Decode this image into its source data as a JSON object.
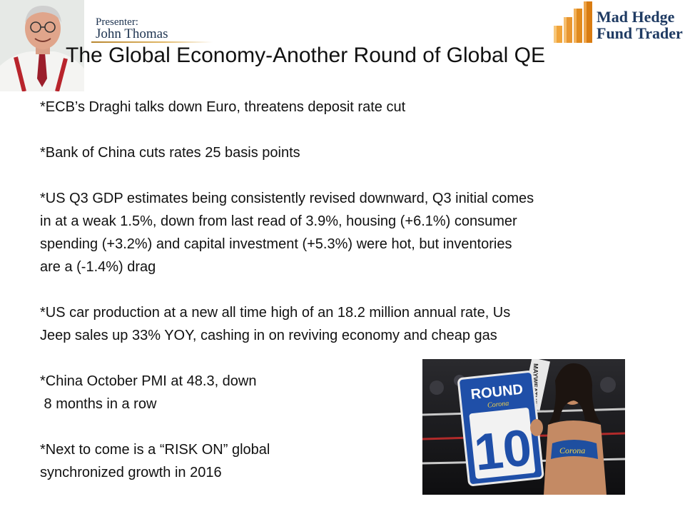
{
  "header": {
    "presenter_label": "Presenter:",
    "presenter_name": "John Thomas",
    "logo_line1": "Mad Hedge",
    "logo_line2": "Fund Trader"
  },
  "title": "The Global Economy-Another Round of Global QE",
  "bullets": [
    [
      "*ECB’s Draghi talks down Euro, threatens deposit rate cut"
    ],
    [
      "*Bank of China cuts rates 25 basis points"
    ],
    [
      "*US Q3 GDP estimates being consistently revised downward, Q3 initial comes",
      "in at a weak 1.5%, down from last read of  3.9%, housing (+6.1%) consumer",
      "spending (+3.2%) and capital investment (+5.3%) were hot, but inventories",
      "are a (-1.4%) drag"
    ],
    [
      "*US car production at a new all time high of an 18.2 million annual rate, Us",
      "Jeep sales up 33% YOY, cashing in on reviving economy and cheap gas"
    ],
    [
      "*China October PMI at 48.3, down",
      " 8 months in a row"
    ],
    [
      "*Next to come is a “RISK ON” global",
      "synchronized growth in 2016"
    ]
  ],
  "photo": {
    "sign_top": "ROUND",
    "sign_number": "10",
    "brand": "Corona",
    "banner_text": "MAYWEATHER"
  },
  "colors": {
    "title_text": "#111111",
    "presenter_text": "#1d3350",
    "logo_text": "#1f3b63",
    "logo_orange": "#e08a1e",
    "sign_blue": "#1f4fa8"
  }
}
